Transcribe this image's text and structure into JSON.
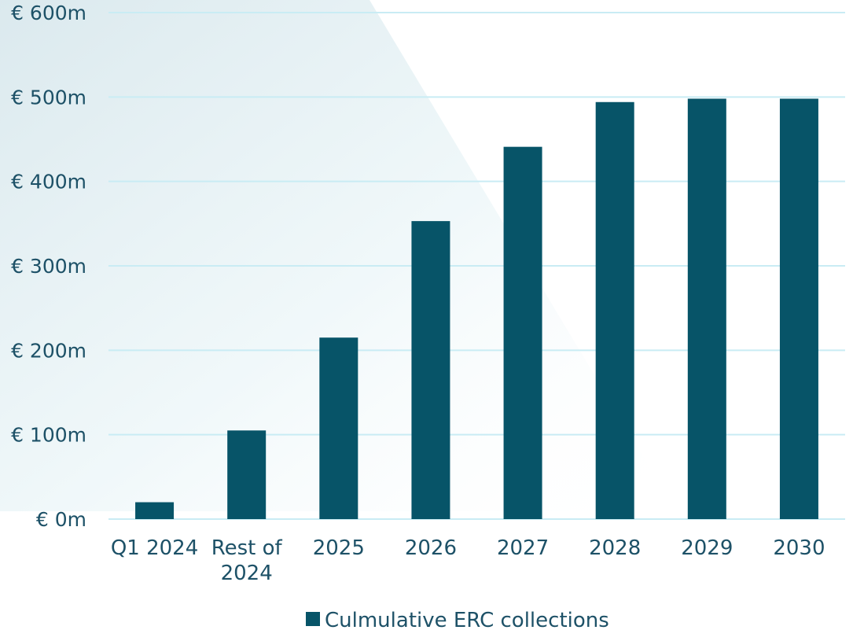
{
  "chart_data": {
    "type": "bar",
    "categories": [
      "Q1 2024",
      "Rest of 2024",
      "2025",
      "2026",
      "2027",
      "2028",
      "2029",
      "2030"
    ],
    "series": [
      {
        "name": "Culmulative ERC collections",
        "values": [
          20,
          105,
          215,
          353,
          441,
          494,
          498,
          498
        ]
      }
    ],
    "title": "",
    "xlabel": "",
    "ylabel": "",
    "ylim": [
      0,
      600
    ],
    "yticks": [
      0,
      100,
      200,
      300,
      400,
      500,
      600
    ],
    "ytick_labels": [
      "€ 0m",
      "€ 100m",
      "€ 200m",
      "€ 300m",
      "€ 400m",
      "€ 500m",
      "€ 600m"
    ],
    "grid": true,
    "legend_position": "bottom-center",
    "colors": {
      "bar": "#075468",
      "grid": "#c9ecf4",
      "text": "#1d5167",
      "background_band": "#dcebf0"
    }
  }
}
